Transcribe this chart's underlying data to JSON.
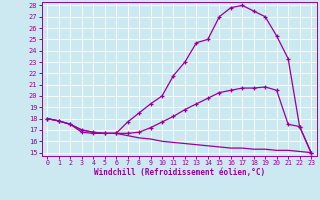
{
  "xlabel": "Windchill (Refroidissement éolien,°C)",
  "bg_color": "#cce8f0",
  "line_color": "#990099",
  "xlim": [
    -0.5,
    23.5
  ],
  "ylim": [
    14.7,
    28.3
  ],
  "yticks": [
    15,
    16,
    17,
    18,
    19,
    20,
    21,
    22,
    23,
    24,
    25,
    26,
    27,
    28
  ],
  "xticks": [
    0,
    1,
    2,
    3,
    4,
    5,
    6,
    7,
    8,
    9,
    10,
    11,
    12,
    13,
    14,
    15,
    16,
    17,
    18,
    19,
    20,
    21,
    22,
    23
  ],
  "curve1_x": [
    0,
    1,
    2,
    3,
    4,
    5,
    6,
    7,
    8,
    9,
    10,
    11,
    12,
    13,
    14,
    15,
    16,
    17,
    18,
    19,
    20,
    21,
    22,
    23
  ],
  "curve1_y": [
    18.0,
    17.8,
    17.5,
    16.8,
    16.7,
    16.7,
    16.7,
    17.7,
    18.5,
    19.3,
    20.0,
    21.8,
    23.0,
    24.7,
    25.0,
    27.0,
    27.8,
    28.0,
    27.5,
    27.0,
    25.3,
    23.3,
    17.3,
    15.0
  ],
  "curve2_x": [
    0,
    1,
    2,
    3,
    4,
    5,
    6,
    7,
    8,
    9,
    10,
    11,
    12,
    13,
    14,
    15,
    16,
    17,
    18,
    19,
    20,
    21,
    22,
    23
  ],
  "curve2_y": [
    18.0,
    17.8,
    17.5,
    17.0,
    16.8,
    16.7,
    16.7,
    16.7,
    16.8,
    17.2,
    17.7,
    18.2,
    18.8,
    19.3,
    19.8,
    20.3,
    20.5,
    20.7,
    20.7,
    20.8,
    20.5,
    17.5,
    17.3,
    15.0
  ],
  "curve3_x": [
    0,
    1,
    2,
    3,
    4,
    5,
    6,
    7,
    8,
    9,
    10,
    11,
    12,
    13,
    14,
    15,
    16,
    17,
    18,
    19,
    20,
    21,
    22,
    23
  ],
  "curve3_y": [
    18.0,
    17.8,
    17.5,
    17.0,
    16.8,
    16.7,
    16.7,
    16.5,
    16.3,
    16.2,
    16.0,
    15.9,
    15.8,
    15.7,
    15.6,
    15.5,
    15.4,
    15.4,
    15.3,
    15.3,
    15.2,
    15.2,
    15.1,
    15.0
  ]
}
